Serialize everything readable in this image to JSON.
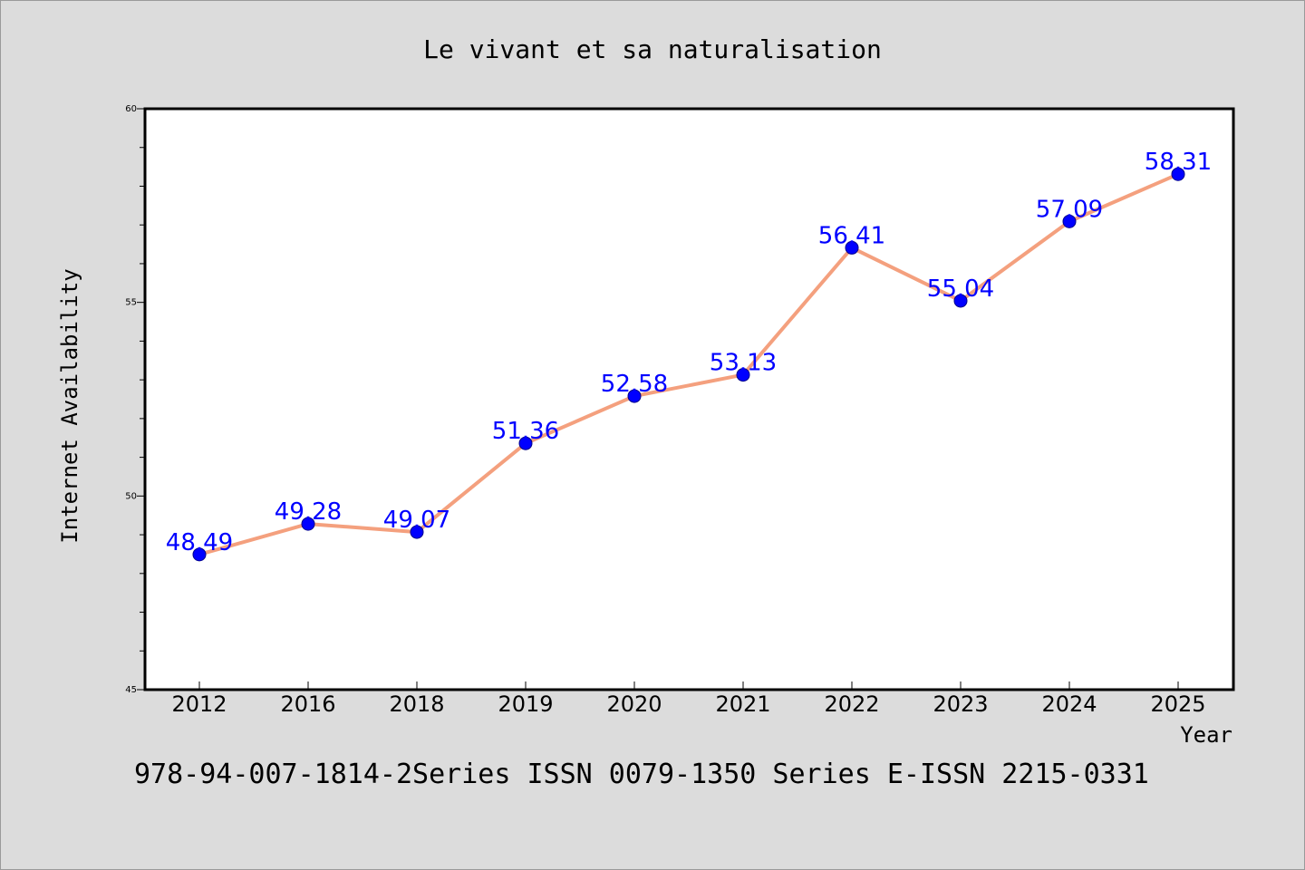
{
  "chart_data": {
    "type": "line",
    "title": "Le vivant et sa naturalisation",
    "xlabel": "Year",
    "ylabel": "Internet Availability",
    "categories": [
      "2012",
      "2016",
      "2018",
      "2019",
      "2020",
      "2021",
      "2022",
      "2023",
      "2024",
      "2025"
    ],
    "values": [
      48.49,
      49.28,
      49.07,
      51.36,
      52.58,
      53.13,
      56.41,
      55.04,
      57.09,
      58.31
    ],
    "data_labels": [
      "48.49",
      "49.28",
      "49.07",
      "51.36",
      "52.58",
      "53.13",
      "56.41",
      "55.04",
      "57.09",
      "58.31"
    ],
    "ylim": [
      45,
      60
    ],
    "yticks": [
      45,
      50,
      55,
      60
    ],
    "ytick_labels": [
      "45",
      "50",
      "55",
      "60"
    ],
    "grid": false,
    "line_color": "#f4a07e",
    "marker_color": "#0000ff",
    "label_color": "#0000ff",
    "background": "#dcdcdc",
    "plot_background": "#ffffff"
  },
  "footer": "978-94-007-1814-2Series ISSN 0079-1350 Series E-ISSN 2215-0331"
}
